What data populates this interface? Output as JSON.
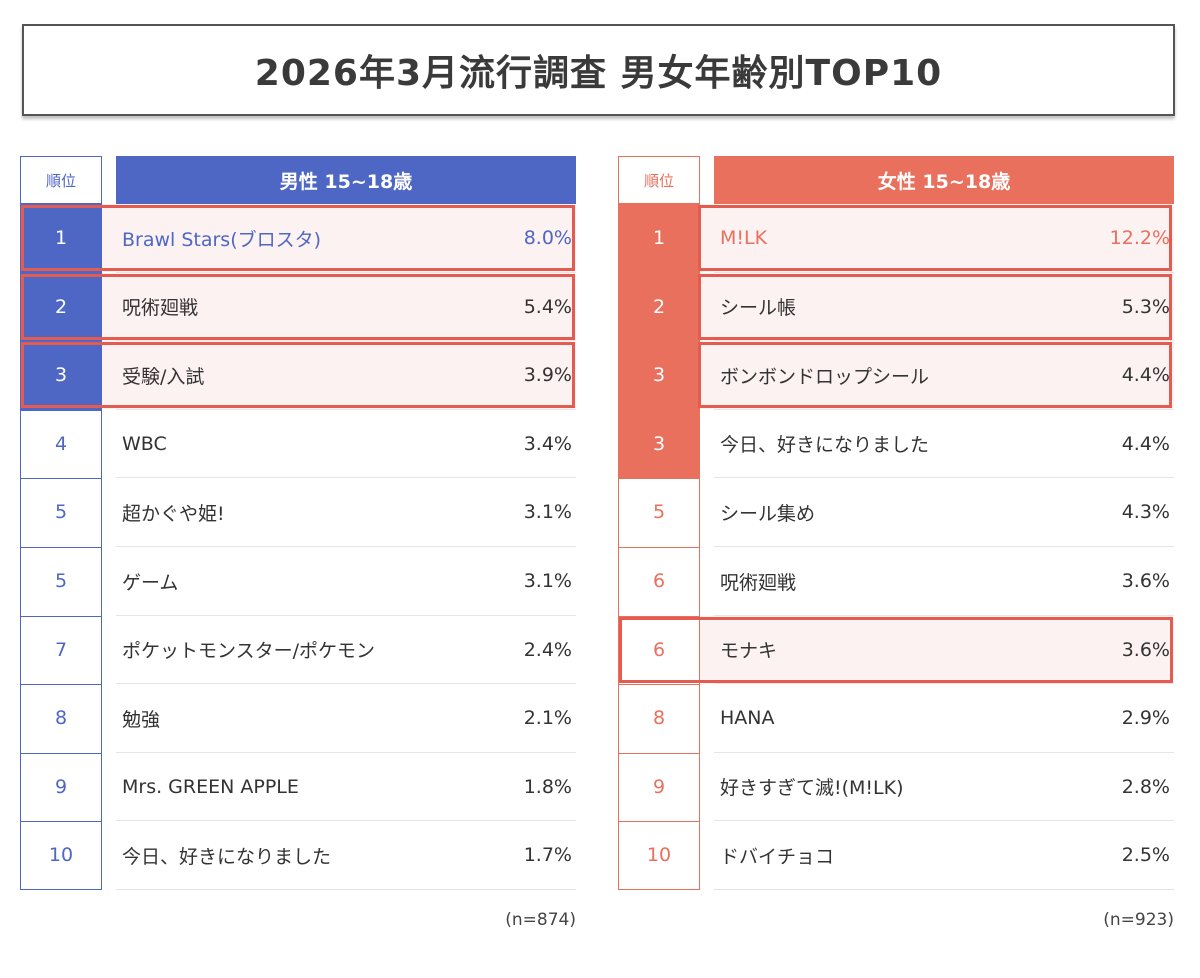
{
  "title": "2026年3月流行調査 男女年齢別TOP10",
  "colors": {
    "male": "#4e67c4",
    "female": "#e8705c",
    "highlight_border": "#e45c4f",
    "highlight_bg": "#fdf2f2"
  },
  "chart_data": {
    "type": "table",
    "title": "2026年3月流行調査 男女年齢別TOP10",
    "tables": [
      {
        "key": "male",
        "rank_header": "順位",
        "category": "男性 15~18歳",
        "n_note": "(n=874)",
        "rows": [
          {
            "rank": "1",
            "item": "Brawl Stars(ブロスタ)",
            "percent": "8.0%",
            "value": 8.0
          },
          {
            "rank": "2",
            "item": "呪術廻戦",
            "percent": "5.4%",
            "value": 5.4
          },
          {
            "rank": "3",
            "item": "受験/入試",
            "percent": "3.9%",
            "value": 3.9
          },
          {
            "rank": "4",
            "item": "WBC",
            "percent": "3.4%",
            "value": 3.4
          },
          {
            "rank": "5",
            "item": "超かぐや姫!",
            "percent": "3.1%",
            "value": 3.1
          },
          {
            "rank": "5",
            "item": "ゲーム",
            "percent": "3.1%",
            "value": 3.1
          },
          {
            "rank": "7",
            "item": "ポケットモンスター/ポケモン",
            "percent": "2.4%",
            "value": 2.4
          },
          {
            "rank": "8",
            "item": "勉強",
            "percent": "2.1%",
            "value": 2.1
          },
          {
            "rank": "9",
            "item": "Mrs. GREEN APPLE",
            "percent": "1.8%",
            "value": 1.8
          },
          {
            "rank": "10",
            "item": "今日、好きになりました",
            "percent": "1.7%",
            "value": 1.7
          }
        ],
        "filled_ranks": 3,
        "highlighted_rows": [
          0,
          1,
          2
        ]
      },
      {
        "key": "female",
        "rank_header": "順位",
        "category": "女性 15~18歳",
        "n_note": "(n=923)",
        "rows": [
          {
            "rank": "1",
            "item": "M!LK",
            "percent": "12.2%",
            "value": 12.2
          },
          {
            "rank": "2",
            "item": "シール帳",
            "percent": "5.3%",
            "value": 5.3
          },
          {
            "rank": "3",
            "item": "ボンボンドロップシール",
            "percent": "4.4%",
            "value": 4.4
          },
          {
            "rank": "3",
            "item": "今日、好きになりました",
            "percent": "4.4%",
            "value": 4.4
          },
          {
            "rank": "5",
            "item": "シール集め",
            "percent": "4.3%",
            "value": 4.3
          },
          {
            "rank": "6",
            "item": "呪術廻戦",
            "percent": "3.6%",
            "value": 3.6
          },
          {
            "rank": "6",
            "item": "モナキ",
            "percent": "3.6%",
            "value": 3.6
          },
          {
            "rank": "8",
            "item": "HANA",
            "percent": "2.9%",
            "value": 2.9
          },
          {
            "rank": "9",
            "item": "好きすぎて滅!(M!LK)",
            "percent": "2.8%",
            "value": 2.8
          },
          {
            "rank": "10",
            "item": "ドバイチョコ",
            "percent": "2.5%",
            "value": 2.5
          }
        ],
        "filled_ranks": 4,
        "highlighted_rows": [
          0,
          1,
          2,
          6
        ]
      }
    ]
  }
}
